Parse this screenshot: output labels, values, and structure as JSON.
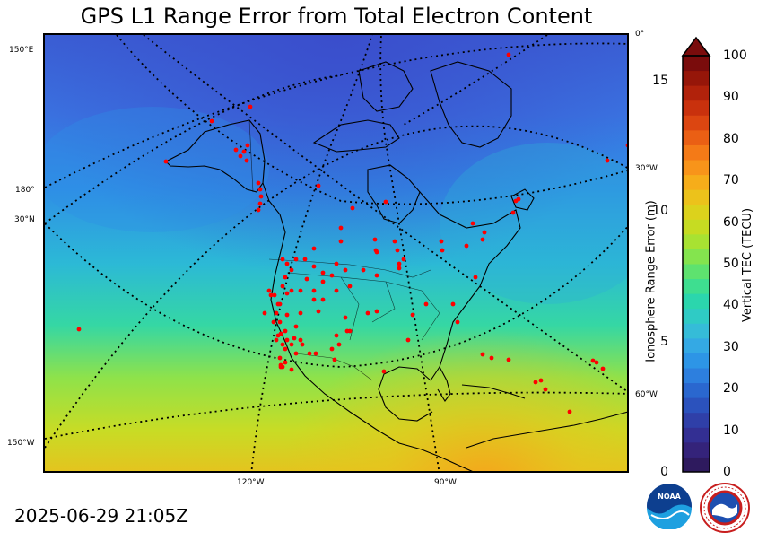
{
  "title": "GPS L1 Range Error from Total Electron Content",
  "timestamp": "2025-06-29 21:05Z",
  "map": {
    "graticule_labels": {
      "lon_150e": "150°E",
      "lon_180": "180°",
      "lat_30n": "30°N",
      "lon_150w": "150°W",
      "lon_120w": "120°W",
      "lon_90w": "90°W",
      "lat_0": "0°",
      "lon_30w": "30°W",
      "lon_60w": "60°W"
    },
    "station_color": "#ff0000",
    "coastline_color": "#000000"
  },
  "colorbar": {
    "left_label": "Ionosphere Range Error (m)",
    "right_label": "Vertical TEC (TECU)",
    "left_ticks": [
      "0",
      "5",
      "10",
      "15"
    ],
    "right_ticks": [
      "0",
      "10",
      "20",
      "30",
      "40",
      "50",
      "60",
      "70",
      "80",
      "90",
      "100"
    ],
    "extend_color": "#7a0c0c",
    "colors": [
      "#2e1a5e",
      "#34237a",
      "#332f93",
      "#2f3fa8",
      "#2b52bd",
      "#2a67cf",
      "#2d7fde",
      "#2d95e6",
      "#34a9e4",
      "#35bcd8",
      "#2fcbc5",
      "#2bd6ad",
      "#3ede90",
      "#5ee26f",
      "#84e44e",
      "#a8e232",
      "#c6dc22",
      "#dcd21c",
      "#ecc21b",
      "#f6ad1a",
      "#f8941a",
      "#f47a17",
      "#ea5f14",
      "#dc4611",
      "#c9310d",
      "#b1220b",
      "#961609",
      "#7a0c0c"
    ]
  },
  "logos": {
    "noaa_text": "NOAA",
    "nws_text": "NATIONAL WEATHER SERVICE"
  }
}
